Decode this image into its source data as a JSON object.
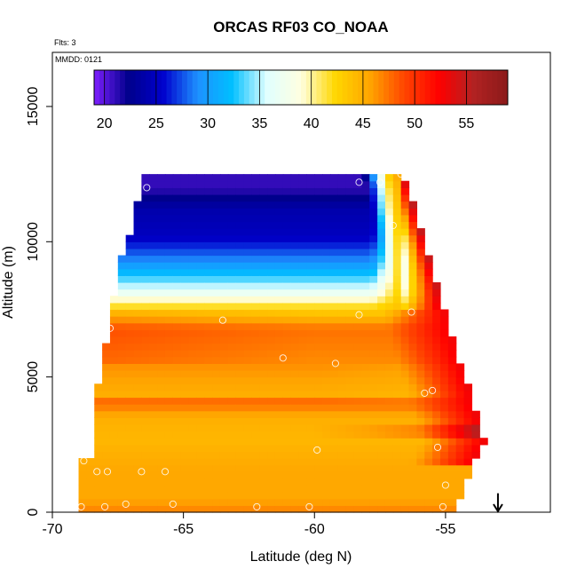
{
  "chart_data": {
    "type": "heatmap",
    "title": "ORCAS RF03 CO_NOAA",
    "annotation_flights": "Flts: 3",
    "annotation_date": "MMDD: 0121",
    "xlabel": "Latitude (deg N)",
    "ylabel": "Altitude (m)",
    "xlim": [
      -70,
      -51
    ],
    "ylim": [
      0,
      17000
    ],
    "xticks": [
      -70,
      -65,
      -60,
      -55
    ],
    "xtick_labels": [
      "-70",
      "-65",
      "-60",
      "-55"
    ],
    "yticks": [
      0,
      5000,
      10000,
      15000
    ],
    "ytick_labels": [
      "0",
      "5000",
      "10000",
      "15000"
    ],
    "colorbar": {
      "range": [
        19,
        59
      ],
      "ticks": [
        20,
        25,
        30,
        35,
        40,
        45,
        50,
        55
      ],
      "tick_labels": [
        "20",
        "25",
        "30",
        "35",
        "40",
        "45",
        "50",
        "55"
      ],
      "colors": [
        "#7f1fff",
        "#00008b",
        "#0000cd",
        "#1e90ff",
        "#00bfff",
        "#e0ffff",
        "#ffffe0",
        "#ffd700",
        "#ffa500",
        "#ff4500",
        "#ff0000",
        "#b22222",
        "#8b1a1a"
      ]
    },
    "field": {
      "description": "CO mixing ratio (ppb) curtain by latitude and altitude",
      "top_boundary": [
        [
          -68.0,
          10200
        ],
        [
          -67.0,
          10500
        ],
        [
          -66.5,
          12400
        ],
        [
          -57.0,
          12400
        ],
        [
          -56.6,
          12500
        ],
        [
          -53.6,
          2900
        ]
      ],
      "bottom_edge": [
        -69.0,
        -54.7
      ],
      "left_edge_profile": [
        [
          0,
          -69.0
        ],
        [
          2000,
          -69.0
        ],
        [
          2100,
          -68.5
        ],
        [
          3300,
          -68.5
        ],
        [
          4500,
          -68.3
        ],
        [
          6000,
          -68.0
        ],
        [
          7600,
          -67.7
        ],
        [
          9800,
          -67.3
        ],
        [
          10200,
          -67.0
        ]
      ],
      "altitude_bands": [
        {
          "alt": 12000,
          "value": 21
        },
        {
          "alt": 11200,
          "value": 24
        },
        {
          "alt": 10200,
          "value": 25
        },
        {
          "alt": 9300,
          "value": 29
        },
        {
          "alt": 8700,
          "value": 33
        },
        {
          "alt": 8100,
          "value": 37
        },
        {
          "alt": 7600,
          "value": 42
        },
        {
          "alt": 6800,
          "value": 47.5
        },
        {
          "alt": 5500,
          "value": 46.5
        },
        {
          "alt": 4300,
          "value": 45
        },
        {
          "alt": 4100,
          "value": 48
        },
        {
          "alt": 3500,
          "value": 45
        },
        {
          "alt": 2700,
          "value": 44.5
        },
        {
          "alt": 1500,
          "value": 45.5
        },
        {
          "alt": 500,
          "value": 45.5
        },
        {
          "alt": 0,
          "value": 47
        }
      ]
    },
    "sample_points": [
      {
        "lat": -66.4,
        "alt": 12000,
        "value": 21
      },
      {
        "lat": -58.3,
        "alt": 12200,
        "value": 24
      },
      {
        "lat": -57.5,
        "alt": 12200,
        "value": 26
      },
      {
        "lat": -56.7,
        "alt": 12500,
        "value": 50
      },
      {
        "lat": -57.0,
        "alt": 10600,
        "value": 35
      },
      {
        "lat": -67.5,
        "alt": 9900,
        "value": 25
      },
      {
        "lat": -56.3,
        "alt": 7400,
        "value": 45
      },
      {
        "lat": -58.3,
        "alt": 7300,
        "value": 43
      },
      {
        "lat": -63.5,
        "alt": 7100,
        "value": 45
      },
      {
        "lat": -67.8,
        "alt": 6800,
        "value": 47
      },
      {
        "lat": -61.2,
        "alt": 5700,
        "value": 46
      },
      {
        "lat": -59.2,
        "alt": 5500,
        "value": 45
      },
      {
        "lat": -68.7,
        "alt": 4400,
        "value": 47
      },
      {
        "lat": -55.8,
        "alt": 4400,
        "value": 48
      },
      {
        "lat": -55.5,
        "alt": 4500,
        "value": 49
      },
      {
        "lat": -53.2,
        "alt": 3000,
        "value": 52
      },
      {
        "lat": -55.3,
        "alt": 2400,
        "value": 45
      },
      {
        "lat": -59.9,
        "alt": 2300,
        "value": 45
      },
      {
        "lat": -68.8,
        "alt": 1900,
        "value": 46
      },
      {
        "lat": -68.3,
        "alt": 1500,
        "value": 45
      },
      {
        "lat": -67.9,
        "alt": 1500,
        "value": 45
      },
      {
        "lat": -66.6,
        "alt": 1500,
        "value": 45
      },
      {
        "lat": -65.7,
        "alt": 1500,
        "value": 45
      },
      {
        "lat": -55.0,
        "alt": 1000,
        "value": 47
      },
      {
        "lat": -67.2,
        "alt": 300,
        "value": 47
      },
      {
        "lat": -65.4,
        "alt": 300,
        "value": 47
      },
      {
        "lat": -62.2,
        "alt": 200,
        "value": 47
      },
      {
        "lat": -60.2,
        "alt": 200,
        "value": 47
      },
      {
        "lat": -55.1,
        "alt": 200,
        "value": 47
      },
      {
        "lat": -68.9,
        "alt": 200,
        "value": 46
      },
      {
        "lat": -68.0,
        "alt": 200,
        "value": 46
      }
    ],
    "arrow_marker": {
      "lat": -53.0,
      "direction": "down",
      "alt_top": 700,
      "alt_bottom": 0
    }
  }
}
